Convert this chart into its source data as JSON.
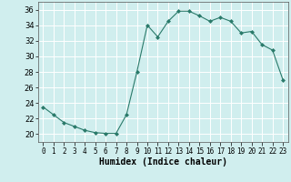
{
  "x": [
    0,
    1,
    2,
    3,
    4,
    5,
    6,
    7,
    8,
    9,
    10,
    11,
    12,
    13,
    14,
    15,
    16,
    17,
    18,
    19,
    20,
    21,
    22,
    23
  ],
  "y": [
    23.5,
    22.5,
    21.5,
    21.0,
    20.5,
    20.2,
    20.1,
    20.1,
    22.5,
    28.0,
    34.0,
    32.5,
    34.5,
    35.8,
    35.8,
    35.2,
    34.5,
    35.0,
    34.5,
    33.0,
    33.2,
    31.5,
    30.8,
    27.0
  ],
  "line_color": "#2a7a6a",
  "marker": "D",
  "marker_size": 2,
  "bg_color": "#d0eeee",
  "grid_color": "#ffffff",
  "xlabel": "Humidex (Indice chaleur)",
  "xlim": [
    -0.5,
    23.5
  ],
  "ylim": [
    19,
    37
  ],
  "yticks": [
    20,
    22,
    24,
    26,
    28,
    30,
    32,
    34,
    36
  ],
  "xticks": [
    0,
    1,
    2,
    3,
    4,
    5,
    6,
    7,
    8,
    9,
    10,
    11,
    12,
    13,
    14,
    15,
    16,
    17,
    18,
    19,
    20,
    21,
    22,
    23
  ],
  "tick_label_fontsize": 5.5,
  "xlabel_fontsize": 7,
  "ytick_label_fontsize": 6
}
